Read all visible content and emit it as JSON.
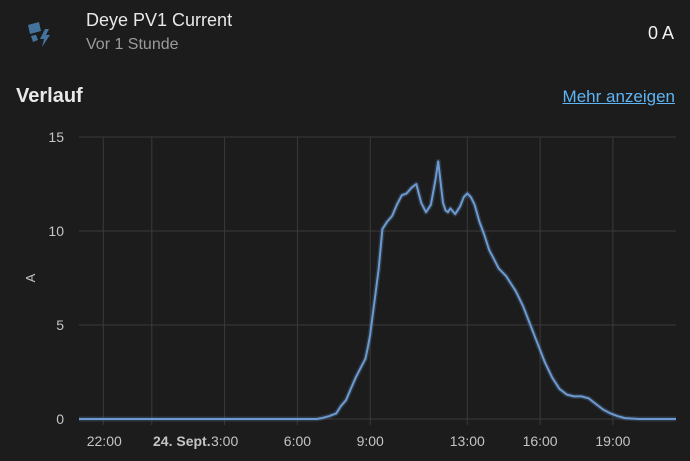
{
  "entity": {
    "name": "Deye PV1 Current",
    "last_changed": "Vor 1 Stunde",
    "state": "0 A",
    "icon": "solar-power-icon",
    "icon_color": "#44739e"
  },
  "history": {
    "title": "Verlauf",
    "more_link": "Mehr anzeigen"
  },
  "colors": {
    "background": "#1c1c1c",
    "line": "#6d9ad0",
    "link": "#5db5f5"
  },
  "chart_data": {
    "type": "line",
    "ylabel": "A",
    "ylim": [
      0,
      15
    ],
    "yticks": [
      "0",
      "5",
      "10",
      "15"
    ],
    "xticks": [
      "22:00",
      "24. Sept.",
      "3:00",
      "6:00",
      "9:00",
      "13:00",
      "16:00",
      "19:00"
    ],
    "xlim": [
      -3,
      21.6
    ],
    "xtick_positions": [
      -2,
      0,
      3,
      6,
      9,
      13,
      16,
      19
    ],
    "series": [
      {
        "x": [
          -3,
          6.8,
          7.0,
          7.3,
          7.6,
          7.8,
          8.0,
          8.2,
          8.4,
          8.6,
          8.8,
          8.9,
          9.0,
          9.1,
          9.2,
          9.35,
          9.5,
          9.7,
          9.9,
          10.1,
          10.3,
          10.5,
          10.7,
          10.9,
          11.1,
          11.3,
          11.5,
          11.7,
          11.8,
          11.9,
          12.0,
          12.1,
          12.2,
          12.3,
          12.5,
          12.7,
          12.85,
          13.0,
          13.15,
          13.3,
          13.5,
          13.7,
          13.9,
          14.1,
          14.3,
          14.6,
          15.0,
          15.3,
          15.6,
          15.9,
          16.2,
          16.5,
          16.8,
          17.1,
          17.4,
          17.7,
          18.0,
          18.3,
          18.6,
          18.9,
          19.2,
          19.5,
          19.8,
          20.1,
          21.6
        ],
        "y": [
          0,
          0,
          0.05,
          0.15,
          0.3,
          0.7,
          1.0,
          1.6,
          2.2,
          2.7,
          3.2,
          3.8,
          4.5,
          5.5,
          6.5,
          8.0,
          10.1,
          10.5,
          10.8,
          11.4,
          11.9,
          12.0,
          12.3,
          12.5,
          11.5,
          11.0,
          11.4,
          12.8,
          13.7,
          12.6,
          11.5,
          11.1,
          11.0,
          11.2,
          10.9,
          11.3,
          11.8,
          12.0,
          11.8,
          11.4,
          10.5,
          9.8,
          9.0,
          8.5,
          8.0,
          7.6,
          6.8,
          6.0,
          5.0,
          4.0,
          3.0,
          2.2,
          1.6,
          1.3,
          1.2,
          1.2,
          1.1,
          0.8,
          0.5,
          0.3,
          0.15,
          0.05,
          0.02,
          0,
          0
        ]
      }
    ],
    "grid": true
  }
}
